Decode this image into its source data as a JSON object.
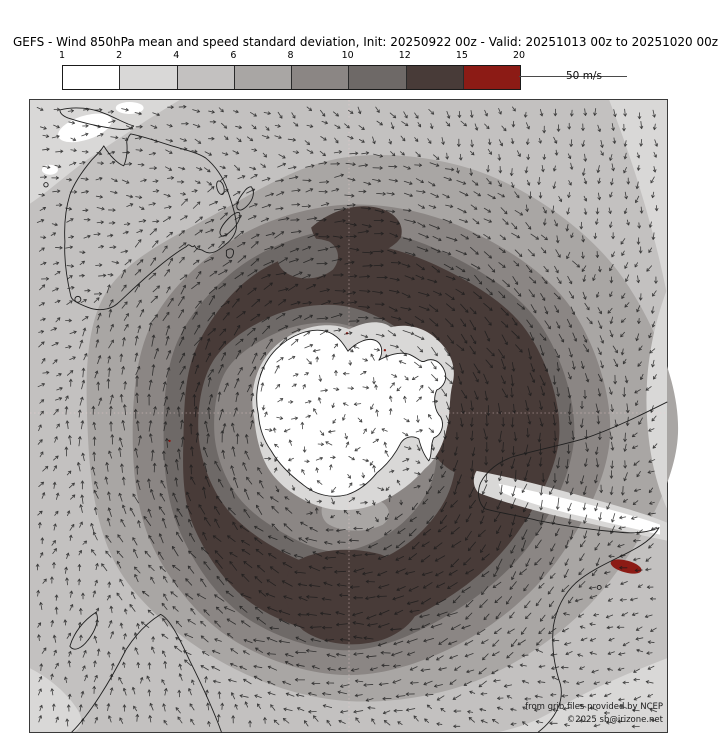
{
  "title": "GEFS - Wind 850hPa mean and speed standard deviation, Init: 20250922 00z - Valid: 20251013 00z to 20251020 00z",
  "colorbar": {
    "ticks": [
      "1",
      "2",
      "4",
      "6",
      "8",
      "10",
      "12",
      "15",
      "20"
    ],
    "segment_colors": [
      "#ffffff",
      "#d9d8d7",
      "#c3c1c0",
      "#a9a6a4",
      "#8b8684",
      "#6e6967",
      "#483b38",
      "#8c1b15"
    ],
    "unit_key_label": "50 m/s"
  },
  "map": {
    "credit_line1": "from grib files provided by NCEP",
    "credit_line2": "©2025 sb@irizone.net"
  },
  "chart_data": {
    "type": "heatmap",
    "title": "GEFS - Wind 850hPa mean and speed standard deviation, Init: 20250922 00z - Valid: 20251013 00z to 20251020 00z",
    "legend": {
      "ticks": [
        1,
        2,
        4,
        6,
        8,
        10,
        12,
        15,
        20
      ],
      "unit": "m/s",
      "colors": [
        "#ffffff",
        "#d9d8d7",
        "#c3c1c0",
        "#a9a6a4",
        "#8b8684",
        "#6e6967",
        "#483b38",
        "#8c1b15"
      ],
      "position": "top"
    },
    "reference_vector": {
      "value": 50,
      "unit": "m/s"
    },
    "projection": "south polar stereographic",
    "field_summary": "Circumpolar ring of high standard deviation (12-15 m/s, dark) around Antarctica; low values (1-4 m/s, white/light) over the Antarctic interior, the Andes and the tropics; small 15-20 m/s (dark red) maximum east of the southern Andes; wind vectors show clockwise circumpolar westerlies."
  }
}
